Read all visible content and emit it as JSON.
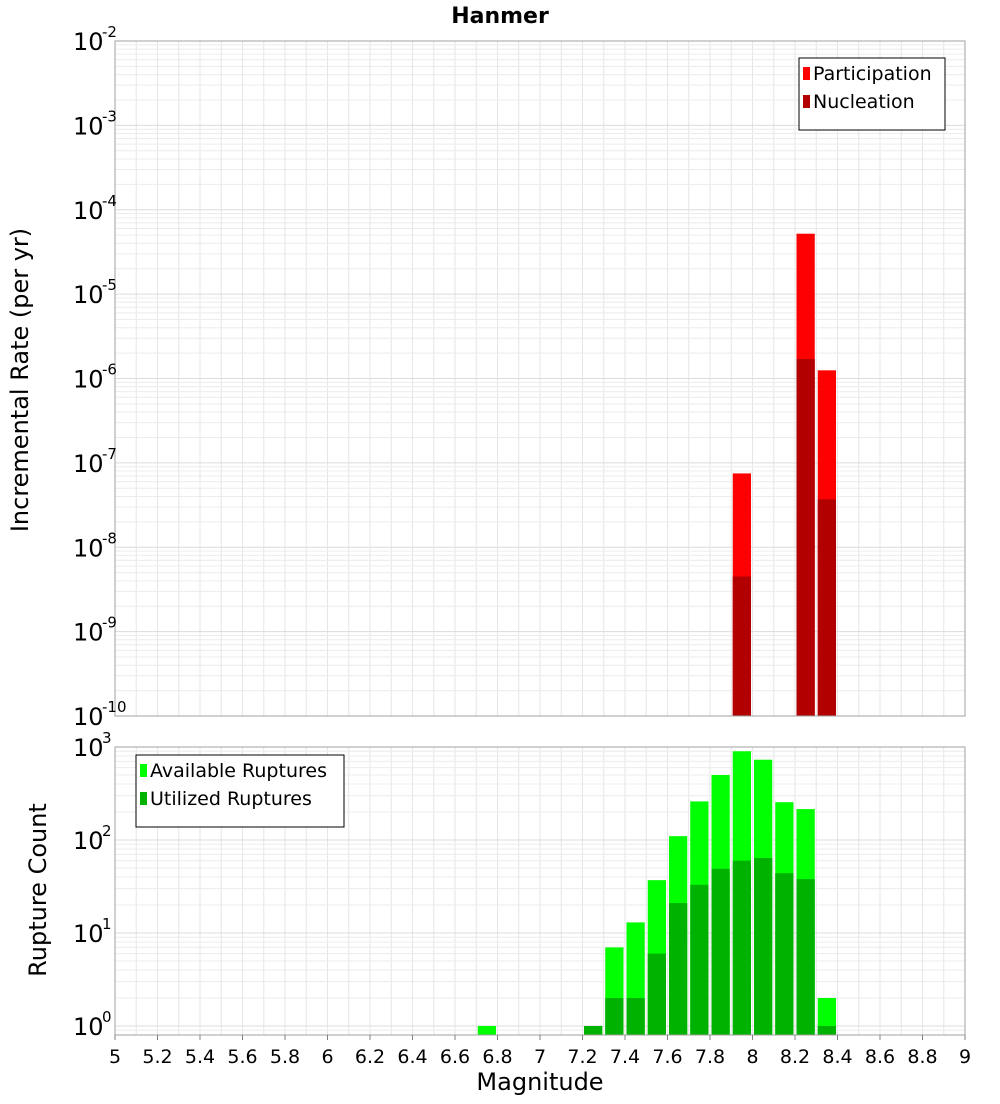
{
  "chart_data": [
    {
      "type": "bar",
      "title": "Hanmer",
      "ylabel": "Incremental Rate (per yr)",
      "yscale": "log",
      "ylim": [
        1e-10,
        0.01
      ],
      "y_ticks": [
        {
          "base": "10",
          "exp": "-10"
        },
        {
          "base": "10",
          "exp": "-9"
        },
        {
          "base": "10",
          "exp": "-8"
        },
        {
          "base": "10",
          "exp": "-7"
        },
        {
          "base": "10",
          "exp": "-6"
        },
        {
          "base": "10",
          "exp": "-5"
        },
        {
          "base": "10",
          "exp": "-4"
        },
        {
          "base": "10",
          "exp": "-3"
        },
        {
          "base": "10",
          "exp": "-2"
        }
      ],
      "grid": true,
      "legend_position": "top-right",
      "series": [
        {
          "name": "Participation",
          "color": "#ff0000",
          "x": [
            7.95,
            8.25,
            8.35
          ],
          "values": [
            7.5e-08,
            5.2e-05,
            1.25e-06
          ]
        },
        {
          "name": "Nucleation",
          "color": "#b20000",
          "x": [
            7.95,
            8.25,
            8.35
          ],
          "values": [
            4.5e-09,
            1.7e-06,
            3.7e-08
          ]
        }
      ]
    },
    {
      "type": "bar",
      "xlabel": "Magnitude",
      "ylabel": "Rupture Count",
      "yscale": "log",
      "ylim": [
        0.8,
        1000
      ],
      "xlim": [
        5,
        9
      ],
      "x_ticks": [
        "5",
        "5.2",
        "5.4",
        "5.6",
        "5.8",
        "6",
        "6.2",
        "6.4",
        "6.6",
        "6.8",
        "7",
        "7.2",
        "7.4",
        "7.6",
        "7.8",
        "8",
        "8.2",
        "8.4",
        "8.6",
        "8.8",
        "9"
      ],
      "y_ticks": [
        {
          "base": "10",
          "exp": "0"
        },
        {
          "base": "10",
          "exp": "1"
        },
        {
          "base": "10",
          "exp": "2"
        },
        {
          "base": "10",
          "exp": "3"
        }
      ],
      "grid": true,
      "legend_position": "top-left",
      "series": [
        {
          "name": "Available Ruptures",
          "color": "#00ff00",
          "x": [
            6.75,
            7.25,
            7.35,
            7.45,
            7.55,
            7.65,
            7.75,
            7.85,
            7.95,
            8.05,
            8.15,
            8.25,
            8.35
          ],
          "values": [
            1,
            1,
            7,
            13,
            37,
            110,
            260,
            500,
            900,
            730,
            255,
            215,
            2
          ]
        },
        {
          "name": "Utilized Ruptures",
          "color": "#00b200",
          "x": [
            7.25,
            7.35,
            7.45,
            7.55,
            7.65,
            7.75,
            7.85,
            7.95,
            8.05,
            8.15,
            8.25,
            8.35
          ],
          "values": [
            1,
            2,
            2,
            6,
            21,
            33,
            49,
            60,
            64,
            44,
            38,
            1
          ]
        }
      ]
    }
  ]
}
